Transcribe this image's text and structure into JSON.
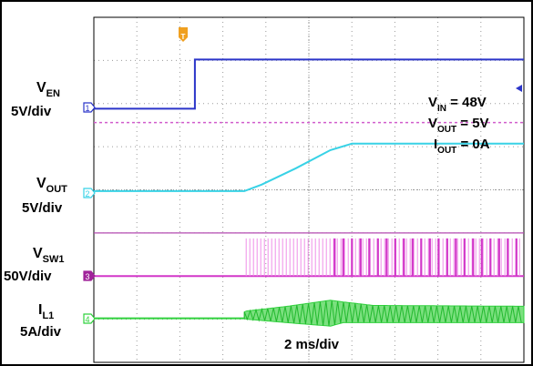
{
  "chart_data": {
    "type": "line",
    "title": "",
    "timebase": "2 ms/div",
    "x_divisions": 10,
    "y_divisions": 8,
    "conditions": {
      "vin": {
        "name": "V",
        "sub": "IN",
        "rest": " = 48V"
      },
      "vout": {
        "name": "V",
        "sub": "OUT",
        "rest": " = 5V"
      },
      "iout": {
        "name": "I",
        "sub": "OUT",
        "rest": " = 0A"
      }
    },
    "series": [
      {
        "channel": "1",
        "label": {
          "name": "V",
          "sub": "EN",
          "scale": "5V/div"
        },
        "color": "#2b35c9",
        "x": [
          0,
          2.35,
          2.35,
          10
        ],
        "y": [
          5.88,
          5.88,
          7.02,
          7.02
        ]
      },
      {
        "channel": "2",
        "label": {
          "name": "V",
          "sub": "OUT",
          "scale": "5V/div"
        },
        "color": "#38d2e6",
        "x": [
          0,
          3.5,
          3.9,
          4.7,
          5.5,
          6.0,
          10
        ],
        "y": [
          3.97,
          3.97,
          4.12,
          4.5,
          4.92,
          5.07,
          5.07
        ]
      },
      {
        "channel": "3",
        "label": {
          "name": "V",
          "sub": "SW1",
          "scale": "50V/div"
        },
        "color": "#d237c9",
        "baseline_div": 2.0,
        "switching_start_ms": 3.5,
        "switching_high_div": 3.0
      },
      {
        "channel": "4",
        "label": {
          "name": "I",
          "sub": "L1",
          "scale": "5A/div"
        },
        "color": "#2fd23c",
        "baseline_div": 1.02,
        "switching_start_ms": 3.5,
        "ripple_envelope": {
          "x": [
            3.5,
            3.55,
            4.5,
            5.5,
            5.8,
            6.5,
            10
          ],
          "up": [
            0.15,
            0.17,
            0.28,
            0.42,
            0.38,
            0.3,
            0.28
          ],
          "down": [
            0.0,
            0.02,
            0.1,
            0.18,
            0.1,
            0.1,
            0.1
          ]
        }
      }
    ],
    "trigger_marker": "T",
    "trigger_x_ms": 2.0,
    "reference_line_div": 5.56
  }
}
